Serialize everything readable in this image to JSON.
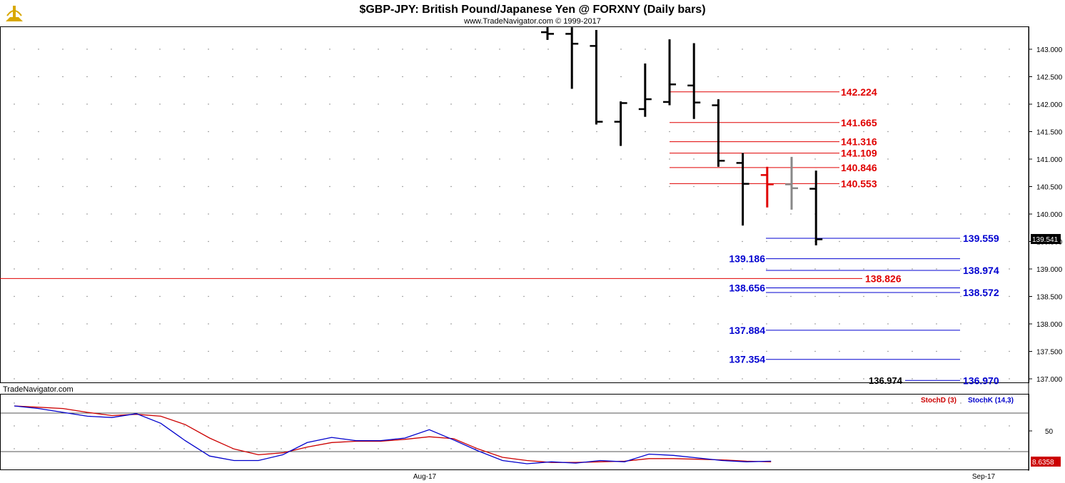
{
  "header": {
    "title": "$GBP-JPY:  British Pound/Japanese Yen @ FORXNY  (Daily bars)",
    "copyright": "www.TradeNavigator.com © 1999-2017",
    "logo_icon": "trade-navigator-logo-icon"
  },
  "watermark": "TradeNavigator.com",
  "price_badge": "139.541",
  "stoch_badge": "8.6358",
  "legend": {
    "stochD": "StochD (3)",
    "stochK": "StochK (14,3)"
  },
  "x_labels": [
    "Aug-17",
    "Sep-17"
  ],
  "colors": {
    "bars": "#000000",
    "red_level": "#e00000",
    "blue_level": "#0000d0",
    "stochD": "#cc0000",
    "stochK": "#0000cc",
    "gray_bar": "#888888"
  },
  "chart_data": [
    {
      "type": "ohlc",
      "title": "$GBP-JPY:  British Pound/Japanese Yen @ FORXNY  (Daily bars)",
      "ylim": [
        136.9,
        143.4
      ],
      "yticks": [
        "143.000",
        "142.500",
        "142.000",
        "141.500",
        "141.000",
        "140.500",
        "140.000",
        "139.500",
        "139.000",
        "138.500",
        "138.000",
        "137.500",
        "137.000"
      ],
      "bars": [
        {
          "o": 143.31,
          "h": 143.4,
          "l": 143.17,
          "c": 143.28,
          "color": "black"
        },
        {
          "o": 143.28,
          "h": 143.4,
          "l": 142.28,
          "c": 143.1,
          "color": "black"
        },
        {
          "o": 143.06,
          "h": 143.35,
          "l": 141.63,
          "c": 141.68,
          "color": "black"
        },
        {
          "o": 141.68,
          "h": 142.05,
          "l": 141.24,
          "c": 142.02,
          "color": "black"
        },
        {
          "o": 141.91,
          "h": 142.74,
          "l": 141.77,
          "c": 142.09,
          "color": "black"
        },
        {
          "o": 142.04,
          "h": 143.18,
          "l": 141.98,
          "c": 142.36,
          "color": "black"
        },
        {
          "o": 142.34,
          "h": 143.11,
          "l": 141.73,
          "c": 142.03,
          "color": "black"
        },
        {
          "o": 141.98,
          "h": 142.09,
          "l": 140.86,
          "c": 140.97,
          "color": "black"
        },
        {
          "o": 140.93,
          "h": 141.11,
          "l": 139.79,
          "c": 140.55,
          "color": "black"
        },
        {
          "o": 140.71,
          "h": 140.86,
          "l": 140.12,
          "c": 140.54,
          "color": "red"
        },
        {
          "o": 140.54,
          "h": 141.04,
          "l": 140.08,
          "c": 140.47,
          "color": "gray"
        },
        {
          "o": 140.46,
          "h": 140.79,
          "l": 139.43,
          "c": 139.54,
          "color": "black"
        }
      ],
      "red_levels": [
        {
          "value": 142.224,
          "label": "142.224"
        },
        {
          "value": 141.665,
          "label": "141.665"
        },
        {
          "value": 141.316,
          "label": "141.316"
        },
        {
          "value": 141.109,
          "label": "141.109"
        },
        {
          "value": 140.846,
          "label": "140.846"
        },
        {
          "value": 140.553,
          "label": "140.553"
        },
        {
          "value": 138.826,
          "label": "138.826"
        }
      ],
      "blue_levels": [
        {
          "value": 139.559,
          "label": "139.559"
        },
        {
          "value": 139.186,
          "label": "139.186"
        },
        {
          "value": 138.974,
          "label": "138.974"
        },
        {
          "value": 138.656,
          "label": "138.656"
        },
        {
          "value": 138.572,
          "label": "138.572"
        },
        {
          "value": 137.884,
          "label": "137.884"
        },
        {
          "value": 137.354,
          "label": "137.354"
        },
        {
          "value": 136.97,
          "label": "136.970"
        }
      ],
      "black_level": {
        "value": 136.974,
        "label": "136.974"
      }
    },
    {
      "type": "line",
      "yticks": [
        "50"
      ],
      "ref_levels": [
        80,
        20
      ],
      "ylim": [
        0,
        100
      ],
      "series": [
        {
          "name": "StochD (3)",
          "values": [
            90,
            88,
            86,
            80,
            75,
            77,
            74,
            61,
            40,
            23,
            14,
            17,
            26,
            33,
            35,
            35,
            38,
            42,
            39,
            23,
            10,
            5,
            2,
            2,
            3,
            4,
            8,
            8,
            7,
            6,
            4,
            3
          ]
        },
        {
          "name": "StochK (14,3)",
          "values": [
            90,
            86,
            80,
            74,
            72,
            78,
            63,
            36,
            12,
            5,
            5,
            14,
            33,
            41,
            36,
            36,
            40,
            53,
            37,
            20,
            5,
            0,
            3,
            1,
            5,
            3,
            15,
            13,
            9,
            5,
            3,
            4
          ]
        }
      ]
    }
  ]
}
